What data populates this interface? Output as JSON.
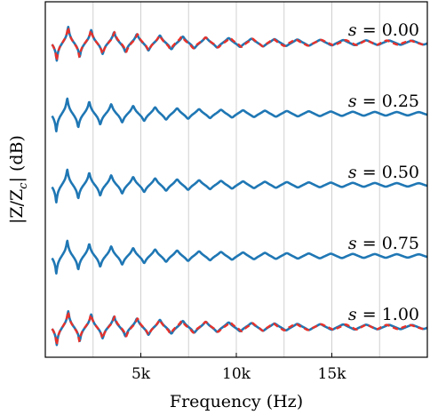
{
  "chart_data": {
    "type": "line",
    "xlabel": "Frequency (Hz)",
    "ylabel_parts": {
      "pre": "|Z/Z",
      "sub": "c",
      "post": "| (dB)"
    },
    "xlim": [
      0,
      20000
    ],
    "x_ticks": [
      {
        "value": 5000,
        "label": "5k"
      },
      {
        "value": 10000,
        "label": "10k"
      },
      {
        "value": 15000,
        "label": "15k"
      }
    ],
    "x_grid": [
      2500,
      5000,
      7500,
      10000,
      12500,
      15000,
      17500
    ],
    "grid": true,
    "colors": {
      "model": "#1f77b4",
      "measured": "#e8312a",
      "grid": "#d0d0d0",
      "axis": "#000000"
    },
    "panels": [
      {
        "s_var": "s",
        "s_eq": " = ",
        "s_value": "0.00",
        "has_measured": true,
        "fund_hz": 1200,
        "decay": 1.15
      },
      {
        "s_var": "s",
        "s_eq": " = ",
        "s_value": "0.25",
        "has_measured": false,
        "fund_hz": 1150,
        "decay": 1.35
      },
      {
        "s_var": "s",
        "s_eq": " = ",
        "s_value": "0.50",
        "has_measured": false,
        "fund_hz": 1150,
        "decay": 1.35
      },
      {
        "s_var": "s",
        "s_eq": " = ",
        "s_value": "0.75",
        "has_measured": false,
        "fund_hz": 1150,
        "decay": 1.35
      },
      {
        "s_var": "s",
        "s_eq": " = ",
        "s_value": "1.00",
        "has_measured": true,
        "fund_hz": 1200,
        "decay": 1.15
      }
    ]
  }
}
